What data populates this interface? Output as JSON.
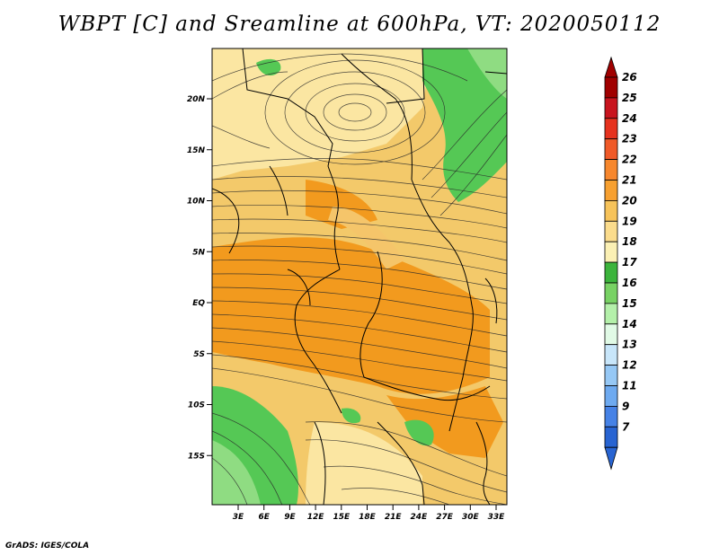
{
  "title": "WBPT [C] and Sreamline at 600hPa, VT: 2020050112",
  "credit": "GrADS: IGES/COLA",
  "map": {
    "lat_labels": [
      "20N",
      "15N",
      "10N",
      "5N",
      "EQ",
      "5S",
      "10S",
      "15S"
    ],
    "lon_labels": [
      "3E",
      "6E",
      "9E",
      "12E",
      "15E",
      "18E",
      "21E",
      "24E",
      "27E",
      "30E",
      "33E"
    ],
    "colors": {
      "land_warm": "#f3c96a",
      "land_hot": "#f29a1e",
      "land_cool": "#fbe6a2",
      "green": "#55c855",
      "green_light": "#8fdc82"
    }
  },
  "colorbar": {
    "labels": [
      "26",
      "25",
      "24",
      "23",
      "22",
      "21",
      "20",
      "19",
      "18",
      "17",
      "16",
      "15",
      "14",
      "13",
      "12",
      "11",
      "9",
      "7"
    ],
    "colors": [
      "#a00000",
      "#c8141e",
      "#e6321e",
      "#f05a28",
      "#f7872d",
      "#f7a030",
      "#f7c35a",
      "#fbdc8c",
      "#fbf0b4",
      "#3cb43c",
      "#78d264",
      "#b4f0aa",
      "#e1fae6",
      "#c8e6fa",
      "#96c8f5",
      "#6eaaf0",
      "#4682e6",
      "#2864d2"
    ]
  }
}
